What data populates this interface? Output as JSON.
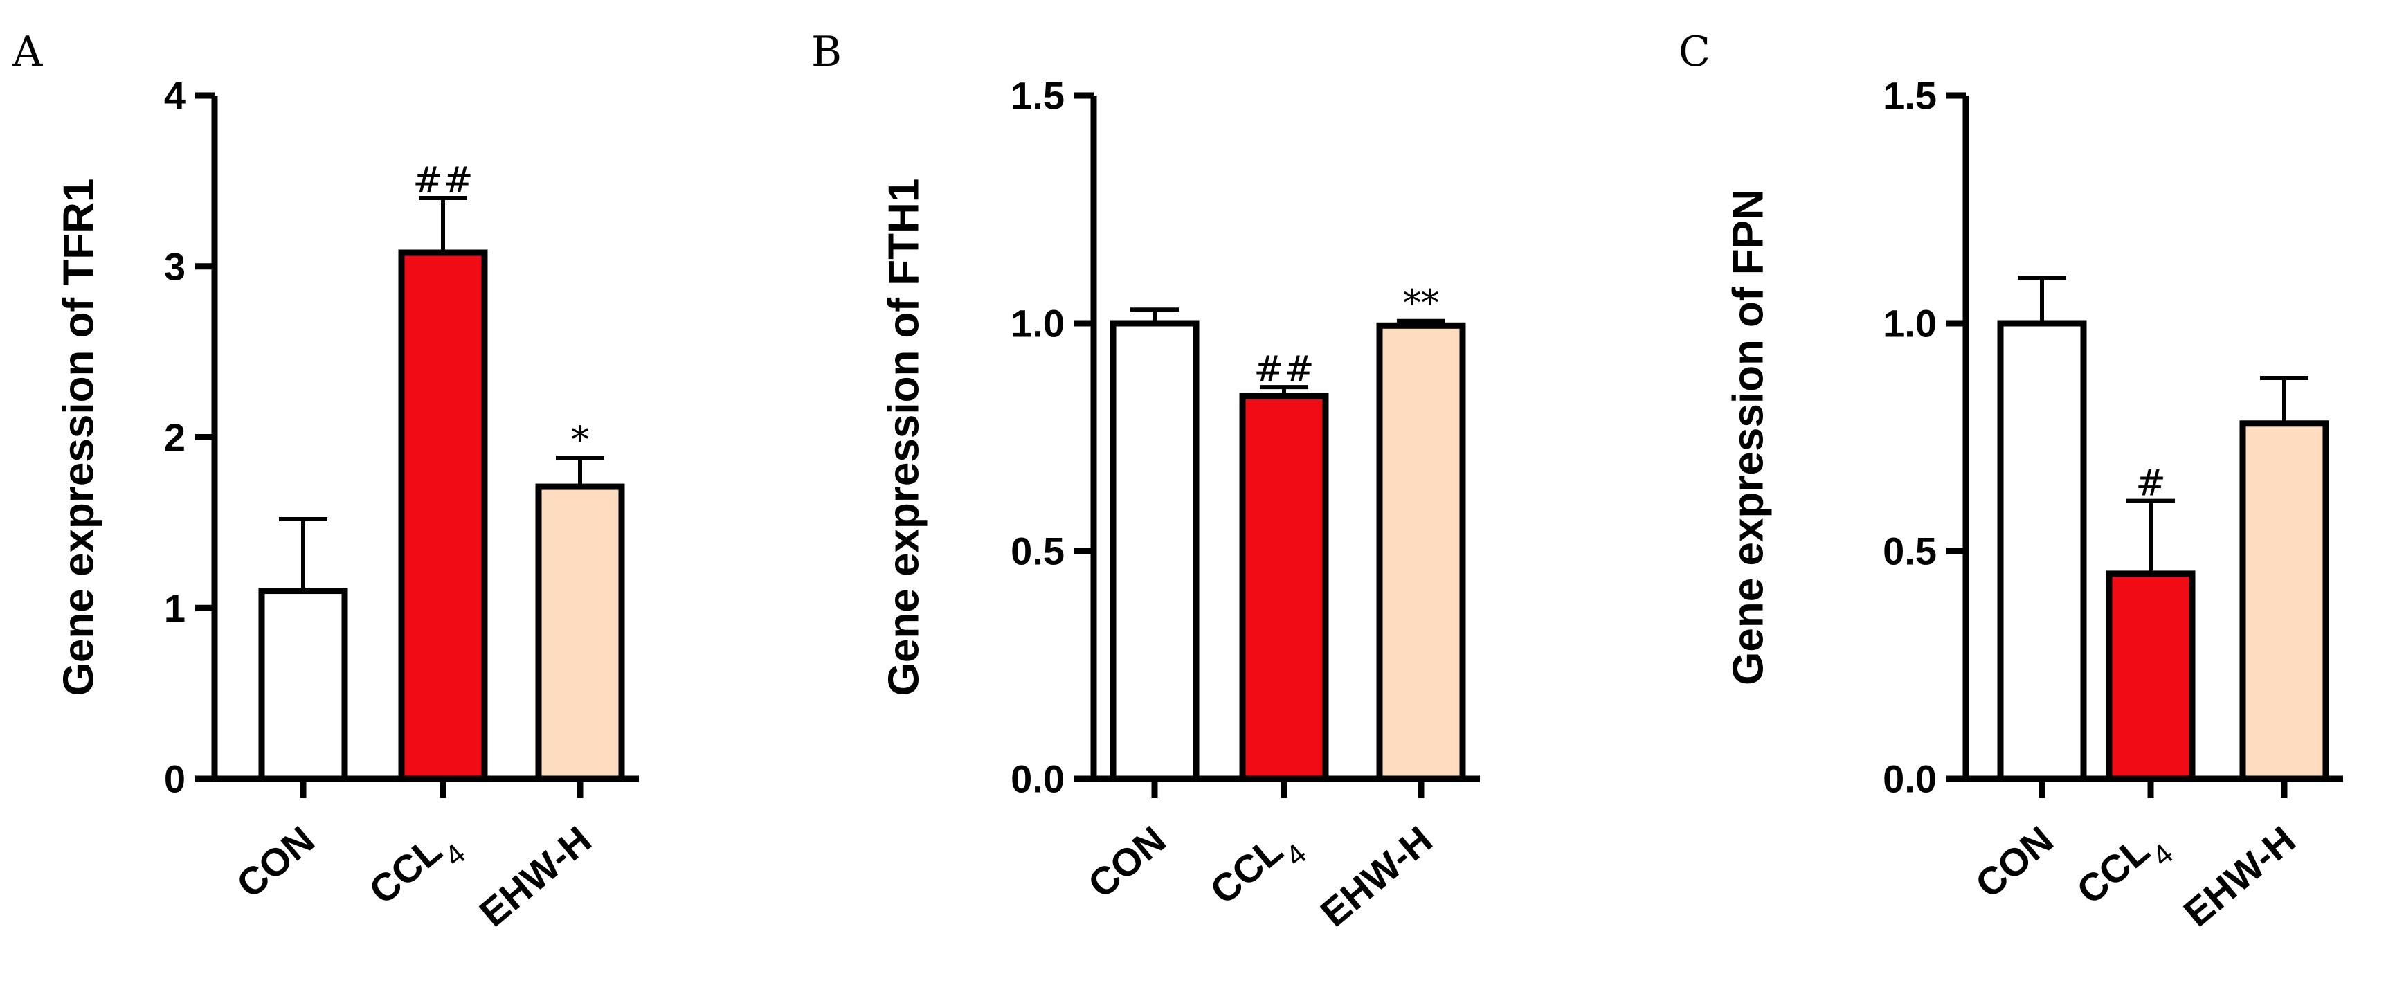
{
  "chart_data": [
    {
      "type": "bar",
      "panel": "A",
      "ylabel": "Gene expression of TFR1",
      "ylim": [
        0,
        4
      ],
      "yticks": [
        "0",
        "1",
        "2",
        "3",
        "4"
      ],
      "categories": [
        {
          "name": "CON",
          "sub": ""
        },
        {
          "name": "CCL",
          "sub": "4"
        },
        {
          "name": "EHW-H",
          "sub": ""
        }
      ],
      "values": [
        1.1,
        3.08,
        1.71
      ],
      "errors": [
        0.42,
        0.32,
        0.17
      ],
      "annotations": [
        "",
        "##",
        "*"
      ],
      "colors": [
        "#ffffff",
        "#f10b15",
        "#fddcbf"
      ]
    },
    {
      "type": "bar",
      "panel": "B",
      "ylabel": "Gene expression of FTH1",
      "ylim": [
        0,
        1.5
      ],
      "yticks": [
        "0.0",
        "0.5",
        "1.0",
        "1.5"
      ],
      "categories": [
        {
          "name": "CON",
          "sub": ""
        },
        {
          "name": "CCL",
          "sub": "4"
        },
        {
          "name": "EHW-H",
          "sub": ""
        }
      ],
      "values": [
        1.0,
        0.84,
        0.995
      ],
      "errors": [
        0.03,
        0.02,
        0.01
      ],
      "annotations": [
        "",
        "##",
        "**"
      ],
      "colors": [
        "#ffffff",
        "#f10b15",
        "#fddcbf"
      ]
    },
    {
      "type": "bar",
      "panel": "C",
      "ylabel": "Gene expression of FPN",
      "ylim": [
        0,
        1.5
      ],
      "yticks": [
        "0.0",
        "0.5",
        "1.0",
        "1.5"
      ],
      "categories": [
        {
          "name": "CON",
          "sub": ""
        },
        {
          "name": "CCL",
          "sub": "4"
        },
        {
          "name": "EHW-H",
          "sub": ""
        }
      ],
      "values": [
        1.0,
        0.45,
        0.78
      ],
      "errors": [
        0.1,
        0.16,
        0.1
      ],
      "annotations": [
        "",
        "#",
        ""
      ],
      "colors": [
        "#ffffff",
        "#f10b15",
        "#fddcbf"
      ]
    }
  ]
}
